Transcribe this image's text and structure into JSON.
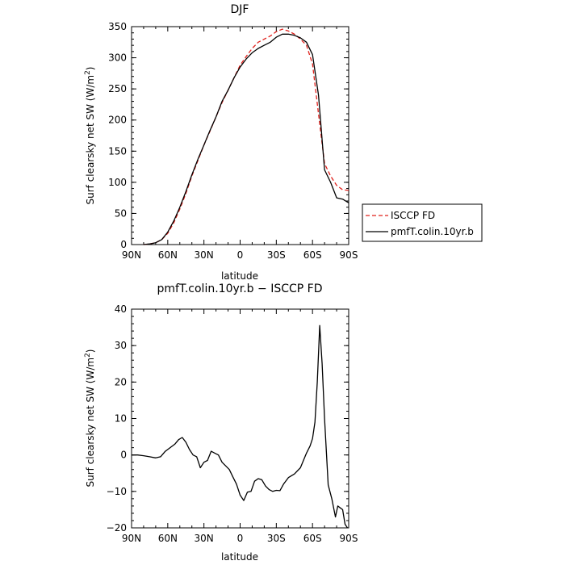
{
  "chart_data": [
    {
      "type": "line",
      "title": "DJF",
      "xlabel": "latitude",
      "ylabel": "Surf clearsky net SW (W/m",
      "ylabel_sup": "2",
      "ylabel_tail": ")",
      "xlim": [
        90,
        -90
      ],
      "ylim": [
        0,
        350
      ],
      "x_ticks": [
        90,
        60,
        30,
        0,
        -30,
        -60,
        -90
      ],
      "x_tick_labels": [
        "90N",
        "60N",
        "30N",
        "0",
        "30S",
        "60S",
        "90S"
      ],
      "y_ticks": [
        0,
        50,
        100,
        150,
        200,
        250,
        300,
        350
      ],
      "y_tick_labels": [
        "0",
        "50",
        "100",
        "150",
        "200",
        "250",
        "300",
        "350"
      ],
      "legend_position": "right",
      "series": [
        {
          "name": "ISCCP FD",
          "color": "#e0201b",
          "dash": "dashed",
          "x": [
            80,
            75,
            70,
            65,
            60,
            55,
            50,
            45,
            40,
            35,
            30,
            25,
            20,
            15,
            10,
            5,
            0,
            -5,
            -10,
            -15,
            -20,
            -25,
            -30,
            -35,
            -40,
            -45,
            -50,
            -55,
            -60,
            -65,
            -70,
            -75,
            -80,
            -85,
            -90
          ],
          "y": [
            0,
            1,
            3,
            8,
            18,
            35,
            57,
            82,
            110,
            135,
            160,
            182,
            205,
            228,
            248,
            268,
            288,
            302,
            315,
            325,
            330,
            335,
            342,
            346,
            343,
            338,
            330,
            320,
            290,
            210,
            130,
            110,
            95,
            88,
            87
          ]
        },
        {
          "name": "pmfT.colin.10yr.b",
          "color": "#000000",
          "dash": "solid",
          "x": [
            80,
            75,
            70,
            65,
            60,
            55,
            50,
            45,
            40,
            35,
            30,
            25,
            20,
            15,
            10,
            5,
            0,
            -5,
            -10,
            -15,
            -20,
            -25,
            -30,
            -35,
            -40,
            -45,
            -50,
            -55,
            -60,
            -65,
            -70,
            -75,
            -80,
            -85,
            -90
          ],
          "y": [
            0,
            1,
            3,
            8,
            20,
            38,
            60,
            85,
            112,
            137,
            160,
            183,
            205,
            230,
            248,
            268,
            285,
            298,
            308,
            315,
            320,
            325,
            333,
            338,
            338,
            336,
            332,
            325,
            305,
            240,
            120,
            100,
            75,
            73,
            67
          ]
        }
      ]
    },
    {
      "type": "line",
      "title": "pmfT.colin.10yr.b − ISCCP FD",
      "xlabel": "latitude",
      "ylabel": "Surf clearsky net SW (W/m",
      "ylabel_sup": "2",
      "ylabel_tail": ")",
      "xlim": [
        90,
        -90
      ],
      "ylim": [
        -20,
        40
      ],
      "x_ticks": [
        90,
        60,
        30,
        0,
        -30,
        -60,
        -90
      ],
      "x_tick_labels": [
        "90N",
        "60N",
        "30N",
        "0",
        "30S",
        "60S",
        "90S"
      ],
      "y_ticks": [
        -20,
        -10,
        0,
        10,
        20,
        30,
        40
      ],
      "y_tick_labels": [
        "−20",
        "−10",
        "0",
        "10",
        "20",
        "30",
        "40"
      ],
      "series": [
        {
          "color": "#000000",
          "x": [
            90,
            85,
            80,
            75,
            70,
            66,
            62,
            58,
            54,
            51,
            48,
            45,
            42,
            39,
            36,
            33,
            30,
            27,
            24,
            21,
            18,
            15,
            12,
            9,
            6,
            3,
            0,
            -3,
            -6,
            -9,
            -12,
            -15,
            -18,
            -21,
            -24,
            -27,
            -30,
            -33,
            -36,
            -40,
            -45,
            -50,
            -55,
            -58,
            -60,
            -62,
            -64,
            -66,
            -68,
            -70,
            -73,
            -76,
            -79,
            -81,
            -83,
            -85,
            -87,
            -89
          ],
          "y": [
            0,
            0,
            -0.2,
            -0.5,
            -0.8,
            -0.5,
            1.0,
            2.0,
            3.0,
            4.2,
            4.8,
            3.5,
            1.5,
            0,
            -0.5,
            -3.5,
            -2,
            -1.5,
            1,
            0.5,
            0,
            -2,
            -3,
            -4,
            -6,
            -8,
            -11,
            -12.5,
            -10.2,
            -10,
            -7.2,
            -6.5,
            -6.8,
            -8.5,
            -9.5,
            -10,
            -9.7,
            -9.8,
            -8,
            -6.2,
            -5.2,
            -3.5,
            0.5,
            2.5,
            4.5,
            9,
            20,
            35.5,
            25,
            10,
            -8.2,
            -12,
            -17,
            -14,
            -14.5,
            -15,
            -19,
            -20
          ]
        }
      ]
    }
  ]
}
